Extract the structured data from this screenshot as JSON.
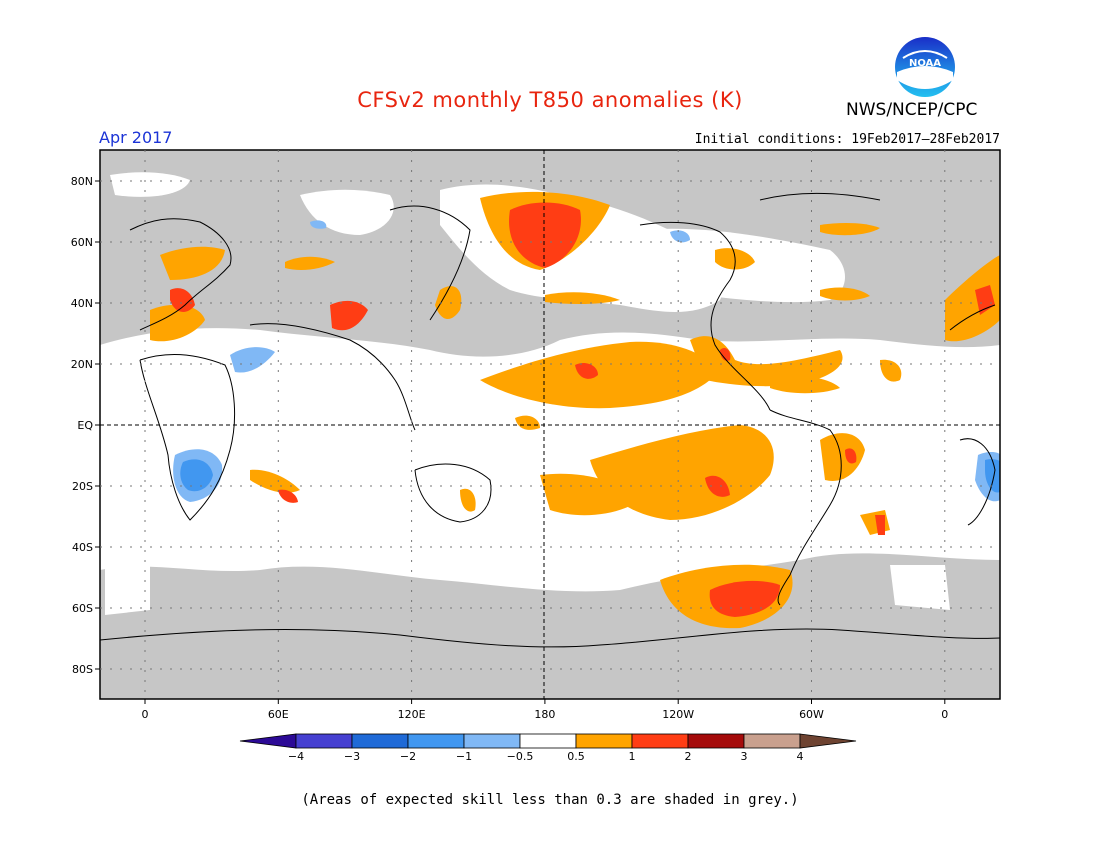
{
  "title": "CFSv2 monthly T850 anomalies (K)",
  "agency": "NWS/NCEP/CPC",
  "logo_text": "NOAA",
  "valid_month": "Apr 2017",
  "initial_conditions": "Initial conditions: 19Feb2017–28Feb2017",
  "note": "(Areas of expected skill less than 0.3 are shaded in grey.)",
  "colors": {
    "title": "#e8250f",
    "valid": "#1c34d6",
    "grey_mask": "#c6c6c6",
    "neutral": "#ffffff",
    "pos_0_5_1": "#ffa400",
    "pos_1_2": "#ff3d14",
    "pos_2_3": "#a50b0b",
    "pos_3_4": "#c9a08e",
    "pos_gt4": "#6e4331",
    "neg_0_5_1": "#80b8f5",
    "neg_1_2": "#4197f0",
    "neg_2_3": "#1f6ad7",
    "neg_3_4": "#4640d1",
    "neg_lt4": "#2c0a96"
  },
  "map": {
    "lat_ticks": [
      "80N",
      "60N",
      "40N",
      "20N",
      "EQ",
      "20S",
      "40S",
      "60S",
      "80S"
    ],
    "lon_ticks": [
      "0",
      "60E",
      "120E",
      "180",
      "120W",
      "60W",
      "0"
    ]
  },
  "colorbar": {
    "labels": [
      "−4",
      "−3",
      "−2",
      "−1",
      "−0.5",
      "0.5",
      "1",
      "2",
      "3",
      "4"
    ],
    "colors": [
      "#2c0a96",
      "#4640d1",
      "#1f6ad7",
      "#4197f0",
      "#80b8f5",
      "#ffffff",
      "#ffa400",
      "#ff3d14",
      "#a50b0b",
      "#c9a08e",
      "#6e4331"
    ]
  }
}
